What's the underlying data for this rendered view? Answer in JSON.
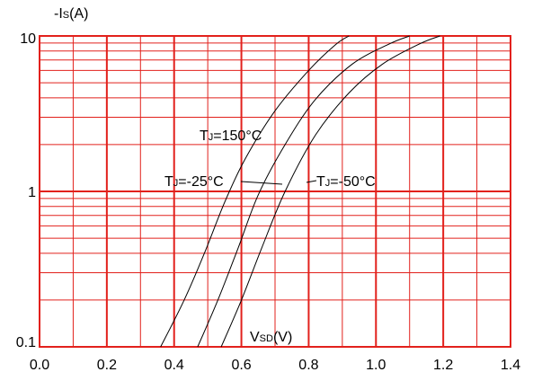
{
  "chart_data": {
    "type": "line",
    "title": "",
    "ylabel": "-Is(A)",
    "xlabel": "VSD(V)",
    "x_ticks": [
      "0.0",
      "0.2",
      "0.4",
      "0.6",
      "0.8",
      "1.0",
      "1.2",
      "1.4"
    ],
    "y_ticks": [
      "0.1",
      "1",
      "10"
    ],
    "xlim": [
      0,
      1.4
    ],
    "ylim": [
      0.1,
      10
    ],
    "yscale": "log",
    "grid": true,
    "colors": {
      "grid": "#e2211c",
      "curves": "#000000"
    },
    "series": [
      {
        "name": "TJ=150°C",
        "points": [
          [
            0.36,
            0.1
          ],
          [
            0.43,
            0.2
          ],
          [
            0.49,
            0.4
          ],
          [
            0.55,
            0.85
          ],
          [
            0.61,
            1.6
          ],
          [
            0.7,
            3.3
          ],
          [
            0.8,
            6.0
          ],
          [
            0.88,
            8.8
          ],
          [
            0.92,
            10
          ]
        ]
      },
      {
        "name": "TJ=-25°C",
        "points": [
          [
            0.47,
            0.1
          ],
          [
            0.53,
            0.2
          ],
          [
            0.59,
            0.43
          ],
          [
            0.65,
            0.95
          ],
          [
            0.73,
            2.0
          ],
          [
            0.82,
            3.9
          ],
          [
            0.93,
            6.6
          ],
          [
            1.04,
            8.9
          ],
          [
            1.1,
            10
          ]
        ]
      },
      {
        "name": "TJ=-50°C",
        "points": [
          [
            0.54,
            0.1
          ],
          [
            0.6,
            0.2
          ],
          [
            0.66,
            0.43
          ],
          [
            0.73,
            1.0
          ],
          [
            0.82,
            2.3
          ],
          [
            0.92,
            4.3
          ],
          [
            1.02,
            6.6
          ],
          [
            1.13,
            8.9
          ],
          [
            1.19,
            10
          ]
        ]
      }
    ],
    "annotations": [
      {
        "main": "T",
        "sub": "J",
        "rest": "=150°C"
      },
      {
        "main": "T",
        "sub": "J",
        "rest": "=-25°C"
      },
      {
        "main": "T",
        "sub": "J",
        "rest": "=-50°C"
      },
      {
        "main": "V",
        "sub": "SD",
        "rest": "(V)"
      }
    ],
    "ylabel_parts": {
      "main": "-I",
      "sub": "S",
      "rest": "(A)"
    }
  }
}
